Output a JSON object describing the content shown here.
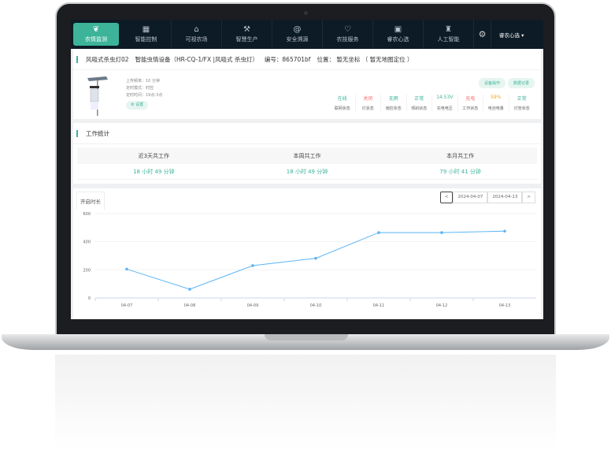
{
  "nav": {
    "items": [
      {
        "label": "农情监测",
        "icon": "leaf-icon",
        "active": true
      },
      {
        "label": "智能控制",
        "icon": "grid-icon"
      },
      {
        "label": "可视农场",
        "icon": "building-icon"
      },
      {
        "label": "智慧生产",
        "icon": "tools-icon"
      },
      {
        "label": "安全溯源",
        "icon": "at-icon"
      },
      {
        "label": "农技服务",
        "icon": "heart-icon"
      },
      {
        "label": "睿农心选",
        "icon": "cart-icon"
      },
      {
        "label": "人工智能",
        "icon": "robot-icon"
      }
    ],
    "user": "睿农心选 ▾"
  },
  "device": {
    "name": "风吸式杀虫灯02",
    "type": "智能虫情设备（HR-CQ-1/FX |风吸式 杀虫灯）",
    "code": "编号：865701bf",
    "location": "位置： 暂无坐标 （ 暂无地图定位 ）",
    "info": [
      "上传频率：10 分钟",
      "定时模式：时控",
      "定时时间：19点-3点"
    ],
    "set_label": "设置",
    "actions": [
      "设备操作",
      "数据记录"
    ],
    "status": [
      {
        "value": "在线",
        "label": "联网状态",
        "color": "#3db39a"
      },
      {
        "value": "关闭",
        "label": "灯状态",
        "color": "#f56c6c"
      },
      {
        "value": "无雨",
        "label": "雨控状态",
        "color": "#3db39a"
      },
      {
        "value": "正常",
        "label": "倾斜状态",
        "color": "#3db39a"
      },
      {
        "value": "14.53V",
        "label": "充电电压",
        "color": "#3db39a"
      },
      {
        "value": "充电",
        "label": "工作状态",
        "color": "#f56c6c"
      },
      {
        "value": "59%",
        "label": "电池电量",
        "color": "#f5a623"
      },
      {
        "value": "正常",
        "label": "灯管状态",
        "color": "#3db39a"
      }
    ]
  },
  "work": {
    "title": "工作统计",
    "headers": [
      "近3天共工作",
      "本周共工作",
      "本月共工作"
    ],
    "values": [
      "18 小时 49 分钟",
      "18 小时 49 分钟",
      "79 小时 41 分钟"
    ]
  },
  "chart_tab": "开启时长",
  "dates": {
    "prev": "<",
    "start": "2024-04-07",
    "end": "2024-04-13",
    "next": ">"
  },
  "chart_data": {
    "type": "line",
    "categories": [
      "04-07",
      "04-08",
      "04-09",
      "04-10",
      "04-11",
      "04-12",
      "04-13"
    ],
    "values": [
      205,
      62,
      230,
      282,
      465,
      465,
      475
    ],
    "ylim": [
      0,
      600
    ],
    "yticks": [
      0,
      200,
      400,
      600
    ],
    "grid": true,
    "color": "#5bb5f5"
  }
}
